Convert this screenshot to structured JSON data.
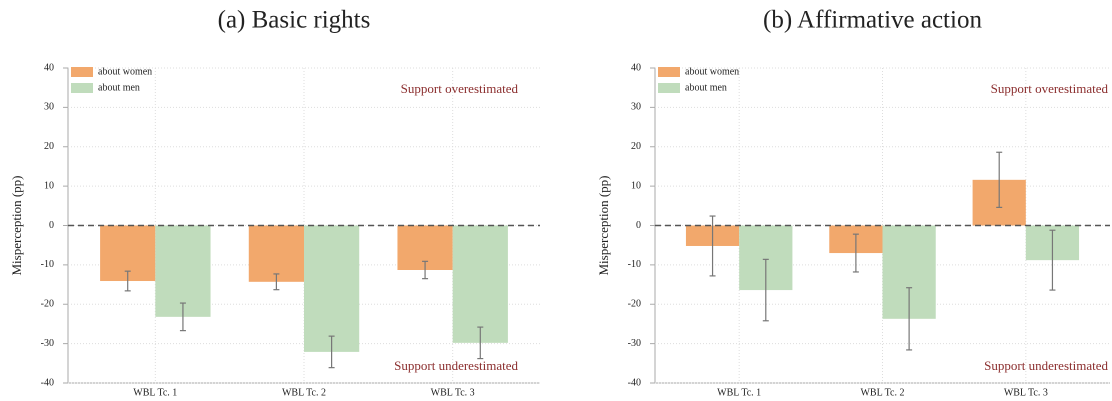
{
  "chart_data": [
    {
      "type": "bar",
      "title": "(a) Basic rights",
      "ylabel": "Misperception (pp)",
      "categories": [
        "WBL Tc. 1",
        "WBL Tc. 2",
        "WBL Tc. 3"
      ],
      "series": [
        {
          "name": "about women",
          "color": "#f2a86c",
          "values": [
            -14.1,
            -14.3,
            -11.3
          ],
          "errors": [
            2.5,
            2.0,
            2.2
          ]
        },
        {
          "name": "about men",
          "color": "#c0dcbc",
          "values": [
            -23.2,
            -32.1,
            -29.8
          ],
          "errors": [
            3.5,
            4.0,
            4.0
          ]
        }
      ],
      "ylim": [
        -40,
        40
      ],
      "yticks": [
        -40,
        -30,
        -20,
        -10,
        0,
        10,
        20,
        30,
        40
      ],
      "grid": true,
      "legend": "upper left",
      "annotations": [
        "Support overestimated",
        "Support underestimated"
      ]
    },
    {
      "type": "bar",
      "title": "(b) Affirmative action",
      "ylabel": "Misperception (pp)",
      "categories": [
        "WBL Tc. 1",
        "WBL Tc. 2",
        "WBL Tc. 3"
      ],
      "series": [
        {
          "name": "about women",
          "color": "#f2a86c",
          "values": [
            -5.2,
            -7.0,
            11.6
          ],
          "errors": [
            7.6,
            4.8,
            7.0
          ]
        },
        {
          "name": "about men",
          "color": "#c0dcbc",
          "values": [
            -16.4,
            -23.7,
            -8.8
          ],
          "errors": [
            7.8,
            7.9,
            7.6
          ]
        }
      ],
      "ylim": [
        -40,
        40
      ],
      "yticks": [
        -40,
        -30,
        -20,
        -10,
        0,
        10,
        20,
        30,
        40
      ],
      "grid": true,
      "legend": "upper left",
      "annotations": [
        "Support overestimated",
        "Support underestimated"
      ]
    }
  ]
}
